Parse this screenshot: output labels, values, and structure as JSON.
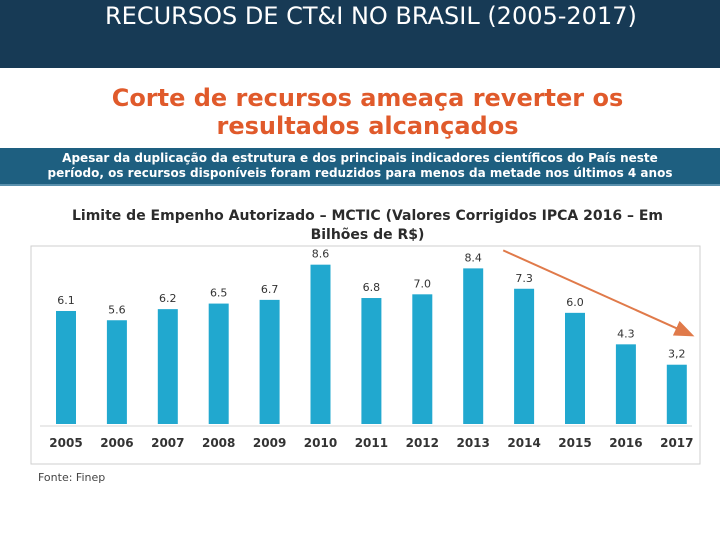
{
  "slide": {
    "title": "RECURSOS DE CT&I NO BRASIL (2005-2017)",
    "headline_line1": "Corte de recursos ameaça reverter os",
    "headline_line2": "resultados alcançados",
    "banner_line1": "Apesar da duplicação da estrutura e dos principais indicadores científicos do País neste",
    "banner_line2": "período, os recursos disponíveis foram reduzidos para menos da metade nos últimos 4 anos",
    "source": "Fonte: Finep"
  },
  "colors": {
    "header_bg": "#173a55",
    "headline": "#e05a2b",
    "banner_bg": "#1e5f80",
    "bar": "#21a8cf",
    "trend_arrow": "#e07a4a"
  },
  "chart_data": {
    "type": "bar",
    "title_line1": "Limite de Empenho Autorizado – MCTIC (Valores Corrigidos IPCA 2016 – Em",
    "title_line2": "Bilhões de R$)",
    "categories": [
      "2005",
      "2006",
      "2007",
      "2008",
      "2009",
      "2010",
      "2011",
      "2012",
      "2013",
      "2014",
      "2015",
      "2016",
      "2017"
    ],
    "values": [
      6.1,
      5.6,
      6.2,
      6.5,
      6.7,
      8.6,
      6.8,
      7.0,
      8.4,
      7.3,
      6.0,
      4.3,
      3.2
    ],
    "labels": [
      "6.1",
      "5.6",
      "6.2",
      "6.5",
      "6.7",
      "8.6",
      "6.8",
      "7.0",
      "8.4",
      "7.3",
      "6.0",
      "4.3",
      "3,2"
    ],
    "ylim": [
      0,
      9.5
    ],
    "grid": false,
    "annotation": "downward trend arrow from 2013 to 2017"
  }
}
